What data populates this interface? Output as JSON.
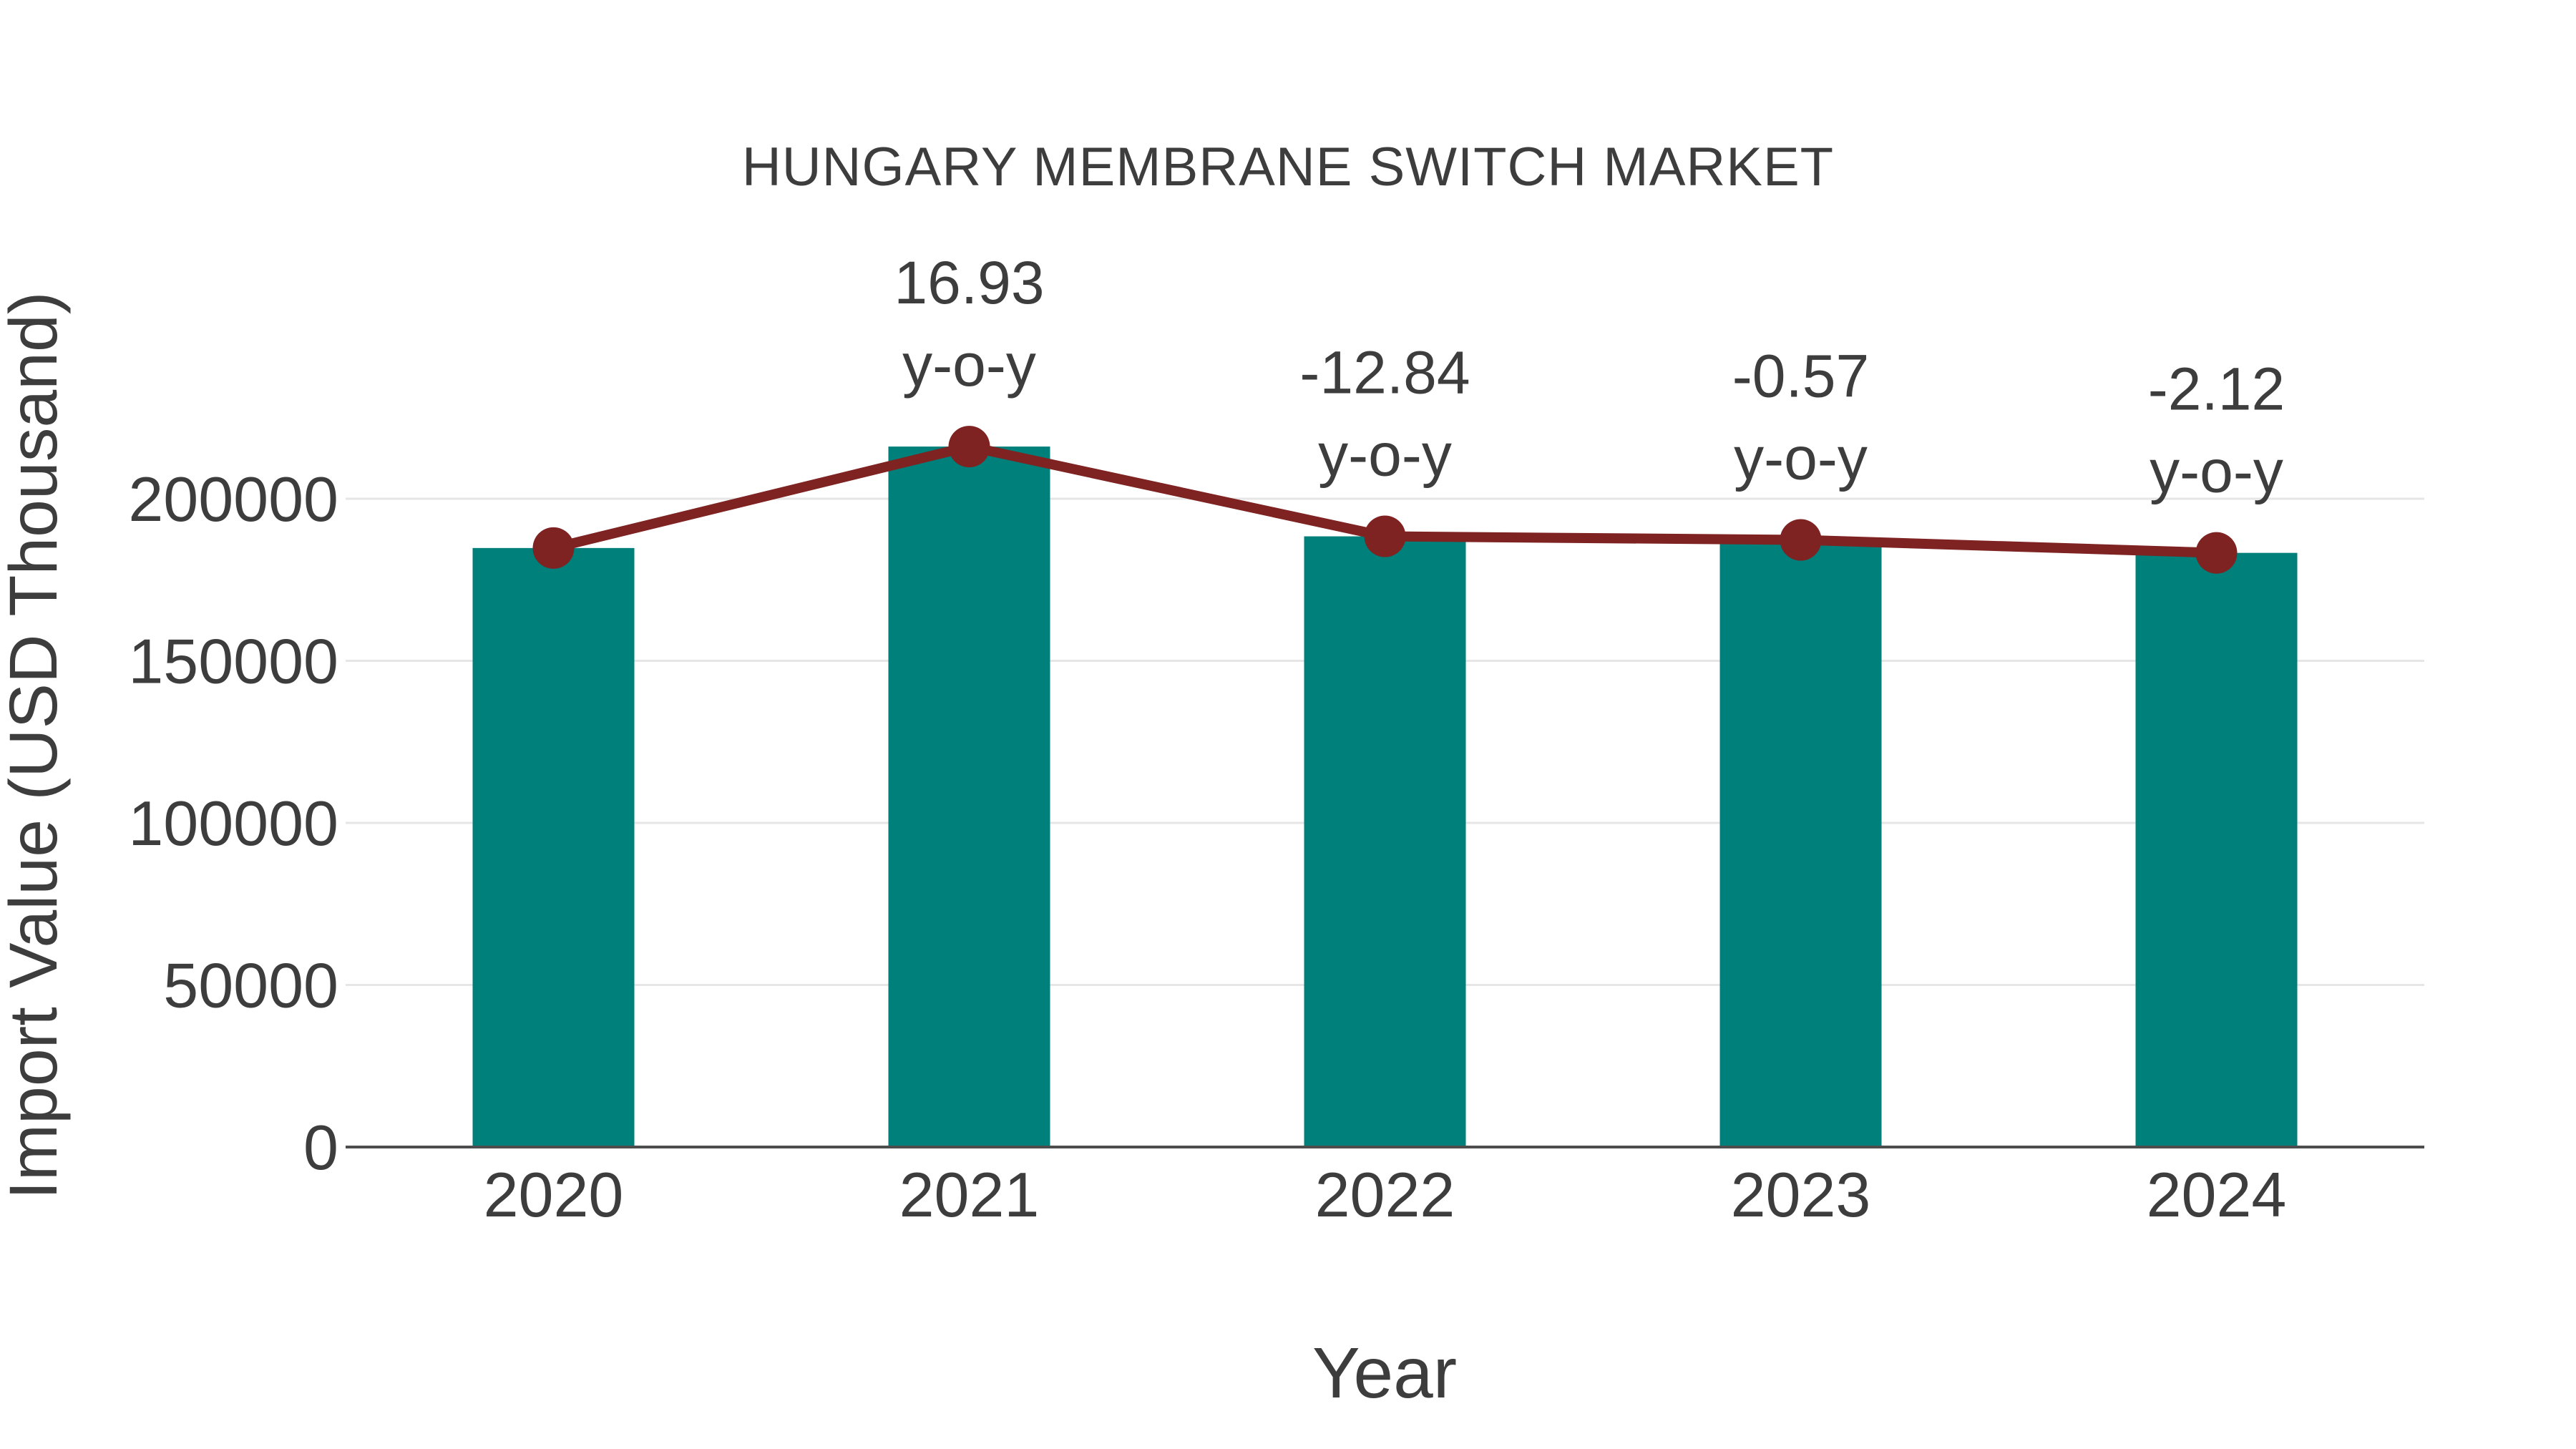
{
  "figure": {
    "background": "#FFFFFF"
  },
  "chart_data": {
    "type": "bar",
    "title": "HUNGARY MEMBRANE SWITCH MARKET",
    "xlabel": "Year",
    "ylabel": "Import Value (USD Thousand)",
    "categories": [
      "2020",
      "2021",
      "2022",
      "2023",
      "2024"
    ],
    "series": [
      {
        "name": "import-value-bars",
        "type": "bar",
        "color": "#00807A",
        "values": [
          184800,
          216100,
          188400,
          187300,
          183300
        ]
      },
      {
        "name": "import-value-trend-line",
        "type": "line",
        "color": "#7E2222",
        "marker": "circle",
        "values": [
          184800,
          216100,
          188400,
          187300,
          183300
        ]
      }
    ],
    "annotations": [
      {
        "category": "2021",
        "value_label": "16.93",
        "suffix_label": "y-o-y"
      },
      {
        "category": "2022",
        "value_label": "-12.84",
        "suffix_label": "y-o-y"
      },
      {
        "category": "2023",
        "value_label": "-0.57",
        "suffix_label": "y-o-y"
      },
      {
        "category": "2024",
        "value_label": "-2.12",
        "suffix_label": "y-o-y"
      }
    ],
    "yticks": [
      "0",
      "50000",
      "100000",
      "150000",
      "200000"
    ],
    "ylim": [
      0,
      230000
    ],
    "grid": "horizontal",
    "legend_position": "none"
  },
  "colors": {
    "bar": "#00807A",
    "line": "#7E2222",
    "marker": "#7E2222",
    "text": "#3D3D3D",
    "grid": "#E6E6E6",
    "axis": "#4D4D4D"
  }
}
